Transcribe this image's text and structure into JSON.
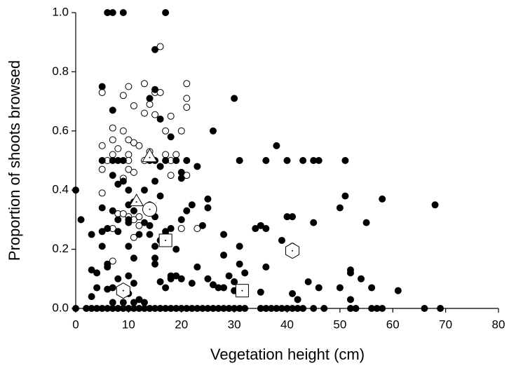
{
  "chart_data": {
    "type": "scatter",
    "x_label": "Vegetation height (cm)",
    "y_label": "Proportion of shoots browsed",
    "xlim": [
      0,
      80
    ],
    "xticks": [
      0,
      10,
      20,
      30,
      40,
      50,
      60,
      70,
      80
    ],
    "ylim": [
      0,
      1
    ],
    "yticks": [
      {
        "value": 0,
        "label": "0.0"
      },
      {
        "value": 0.2,
        "label": "0.2"
      },
      {
        "value": 0.4,
        "label": "0.4"
      },
      {
        "value": 0.6,
        "label": "0.6"
      },
      {
        "value": 0.8,
        "label": "0.8"
      },
      {
        "value": 1,
        "label": "1.0"
      }
    ],
    "grid": false,
    "series": [
      {
        "marker": "circle",
        "color": "#ffffff",
        "x": [
          5,
          5,
          5,
          5,
          6,
          7,
          7,
          7,
          7,
          7,
          8,
          8,
          9,
          9,
          9,
          9,
          10,
          10,
          10,
          10,
          10,
          10,
          11,
          11,
          11,
          11,
          12,
          12,
          12,
          13,
          13,
          13,
          14,
          14,
          15,
          15,
          16,
          16,
          17,
          17,
          18,
          18,
          18,
          19,
          20,
          20,
          21,
          21,
          21,
          21,
          23,
          11
        ],
        "values": [
          0.73,
          0.55,
          0.47,
          0.39,
          0.5,
          0.61,
          0.57,
          0.52,
          0.27,
          0.16,
          0.54,
          0.32,
          0.72,
          0.6,
          0.44,
          0.32,
          0.75,
          0.57,
          0.52,
          0.5,
          0.47,
          0.31,
          0.56,
          0.685,
          0.46,
          0.3,
          0.55,
          0.28,
          0.31,
          0.76,
          0.66,
          0.5,
          0.69,
          0.53,
          0.73,
          0.655,
          0.885,
          0.73,
          0.52,
          0.6,
          0.65,
          0.5,
          0.45,
          0.52,
          0.6,
          0.27,
          0.76,
          0.71,
          0.68,
          0.45,
          0.27,
          0.24
        ]
      },
      {
        "marker": "circle",
        "color": "#000000",
        "x": [
          0,
          2,
          3,
          4,
          5,
          6,
          7,
          8,
          9,
          10,
          11,
          12,
          13,
          14,
          15,
          16,
          17,
          18,
          19,
          20,
          21,
          22,
          23,
          24,
          25,
          26,
          27,
          28,
          29,
          30,
          31,
          32,
          35,
          36,
          37,
          38,
          39,
          40,
          41,
          42,
          43,
          45,
          47,
          52,
          53,
          56,
          57,
          58,
          66,
          69,
          0,
          1,
          3,
          3,
          4,
          4,
          3,
          5,
          5,
          5,
          5,
          5,
          6,
          6,
          6,
          6,
          6,
          7,
          7,
          7,
          7,
          7,
          7,
          7,
          8,
          8,
          8,
          8,
          8,
          9,
          9,
          9,
          9,
          10,
          10,
          10,
          10,
          10,
          10,
          10,
          11,
          11,
          11,
          11,
          11,
          12,
          12,
          13,
          13,
          13,
          14,
          14,
          14,
          14,
          14,
          15,
          15,
          15,
          15,
          15,
          15,
          15,
          15,
          16,
          16,
          16,
          16,
          16,
          17,
          17,
          17,
          17,
          17,
          18,
          18,
          18,
          18,
          19,
          19,
          19,
          20,
          20,
          20,
          20,
          21,
          21,
          22,
          22,
          23,
          23,
          24,
          25,
          25,
          25,
          26,
          26,
          27,
          28,
          28,
          28,
          29,
          30,
          30,
          30,
          31,
          31,
          31,
          32,
          34,
          35,
          35,
          36,
          36,
          36,
          38,
          39,
          40,
          40,
          41,
          41,
          41,
          42,
          43,
          44,
          45,
          45,
          46,
          46,
          50,
          50,
          51,
          51,
          52,
          52,
          52,
          54,
          55,
          56,
          58,
          61,
          68
        ],
        "values": [
          0,
          0,
          0,
          0,
          0,
          0,
          0,
          0,
          0,
          0,
          0,
          0,
          0,
          0,
          0,
          0,
          0,
          0,
          0,
          0,
          0,
          0,
          0,
          0,
          0,
          0,
          0,
          0,
          0,
          0,
          0,
          0,
          0,
          0,
          0,
          0,
          0,
          0,
          0,
          0,
          0,
          0,
          0,
          0,
          0,
          0,
          0,
          0,
          0,
          0,
          0.4,
          0.3,
          0.25,
          0.13,
          0.12,
          0.07,
          0.04,
          0.75,
          0.5,
          0.34,
          0.26,
          0.21,
          0.15,
          0.14,
          0.27,
          0.065,
          1,
          1,
          0.67,
          0.5,
          0.45,
          0.33,
          0.07,
          0.02,
          0.5,
          0.42,
          0.3,
          0.26,
          0.1,
          1,
          0.5,
          0.43,
          0.02,
          0.4,
          0.35,
          0.3,
          0.29,
          0.21,
          0.11,
          0.05,
          0.36,
          0.33,
          0.17,
          0.085,
          0.02,
          0.25,
          0.03,
          0.29,
          0.4,
          0.02,
          0.71,
          0.5,
          0.35,
          0.28,
          0.25,
          0.875,
          0.74,
          0.5,
          0.43,
          0.31,
          0.21,
          0.17,
          0.15,
          0.64,
          0.48,
          0.38,
          0.23,
          0.09,
          1,
          0.5,
          0.26,
          0.07,
          0.25,
          0.58,
          0.27,
          0.11,
          0.1,
          0.5,
          0.2,
          0.11,
          0.46,
          0.44,
          0.3,
          0.1,
          0.5,
          0.33,
          0.35,
          0.085,
          0.48,
          0.14,
          0.28,
          0.37,
          0.34,
          0.1,
          0.6,
          0.08,
          0.07,
          0.25,
          0.18,
          0.07,
          0.11,
          0.71,
          0.09,
          0.06,
          0.5,
          0.21,
          0.15,
          0.12,
          0.27,
          0.28,
          0.055,
          0.27,
          0.5,
          0.14,
          0.55,
          0.23,
          0.5,
          0.31,
          0.31,
          0.21,
          0.05,
          0.03,
          0.5,
          0.09,
          0.29,
          0.5,
          0.5,
          0.07,
          0.34,
          0.07,
          0.5,
          0.38,
          0.13,
          0.12,
          0.03,
          0.1,
          0.29,
          0.07,
          0.37,
          0.06,
          0.35
        ]
      },
      {
        "marker": "circle-large",
        "color": "#ffffff",
        "x": [
          14
        ],
        "values": [
          0.335
        ]
      },
      {
        "marker": "triangle-down",
        "color": "#ffffff",
        "x": [
          14
        ],
        "values": [
          0.51
        ]
      },
      {
        "marker": "triangle-up",
        "color": "#ffffff",
        "x": [
          11.5
        ],
        "values": [
          0.36
        ]
      },
      {
        "marker": "square",
        "color": "#ffffff",
        "x": [
          17,
          31.5
        ],
        "values": [
          0.23,
          0.06
        ]
      },
      {
        "marker": "hexagon",
        "color": "#ffffff",
        "x": [
          9,
          41
        ],
        "values": [
          0.06,
          0.195
        ]
      }
    ]
  }
}
